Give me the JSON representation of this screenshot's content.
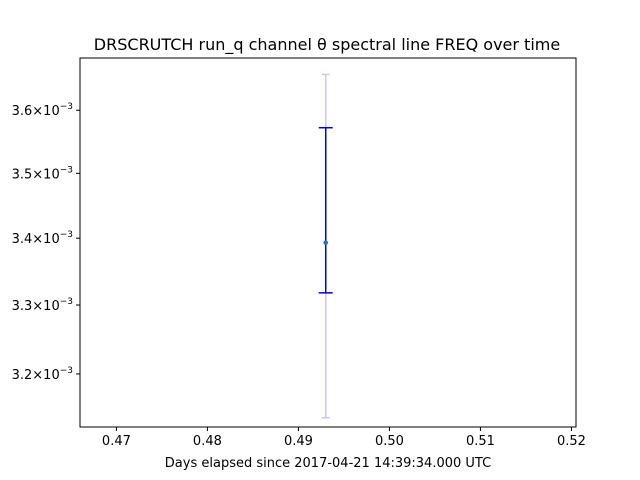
{
  "chart_data": {
    "type": "scatter",
    "title": "DRSCRUTCH run_q channel θ spectral line FREQ over time",
    "xlabel": "Days elapsed since 2017-04-21 14:39:34.000 UTC",
    "ylabel": "",
    "xlim": [
      0.466,
      0.5205
    ],
    "ylim": [
      0.003125,
      0.003685
    ],
    "yscale": "log",
    "grid": false,
    "x_ticks": [
      {
        "value": 0.47,
        "label": "0.47"
      },
      {
        "value": 0.48,
        "label": "0.48"
      },
      {
        "value": 0.49,
        "label": "0.49"
      },
      {
        "value": 0.5,
        "label": "0.50"
      },
      {
        "value": 0.51,
        "label": "0.51"
      },
      {
        "value": 0.52,
        "label": "0.52"
      }
    ],
    "y_ticks": [
      {
        "value": 0.0032,
        "mantissa": "3.2",
        "base": "×10",
        "exp": "−3"
      },
      {
        "value": 0.0033,
        "mantissa": "3.3",
        "base": "×10",
        "exp": "−3"
      },
      {
        "value": 0.0034,
        "mantissa": "3.4",
        "base": "×10",
        "exp": "−3"
      },
      {
        "value": 0.0035,
        "mantissa": "3.5",
        "base": "×10",
        "exp": "−3"
      },
      {
        "value": 0.0036,
        "mantissa": "3.6",
        "base": "×10",
        "exp": "−3"
      }
    ],
    "points": [
      {
        "x": 0.493,
        "y": 0.003393,
        "err_inner": [
          0.003318,
          0.003572
        ],
        "err_outer": [
          0.003138,
          0.003658
        ]
      }
    ],
    "colors": {
      "point": "#1f77b4",
      "err_inner": "#0000cc",
      "err_outer": "#c8c8f0"
    }
  }
}
